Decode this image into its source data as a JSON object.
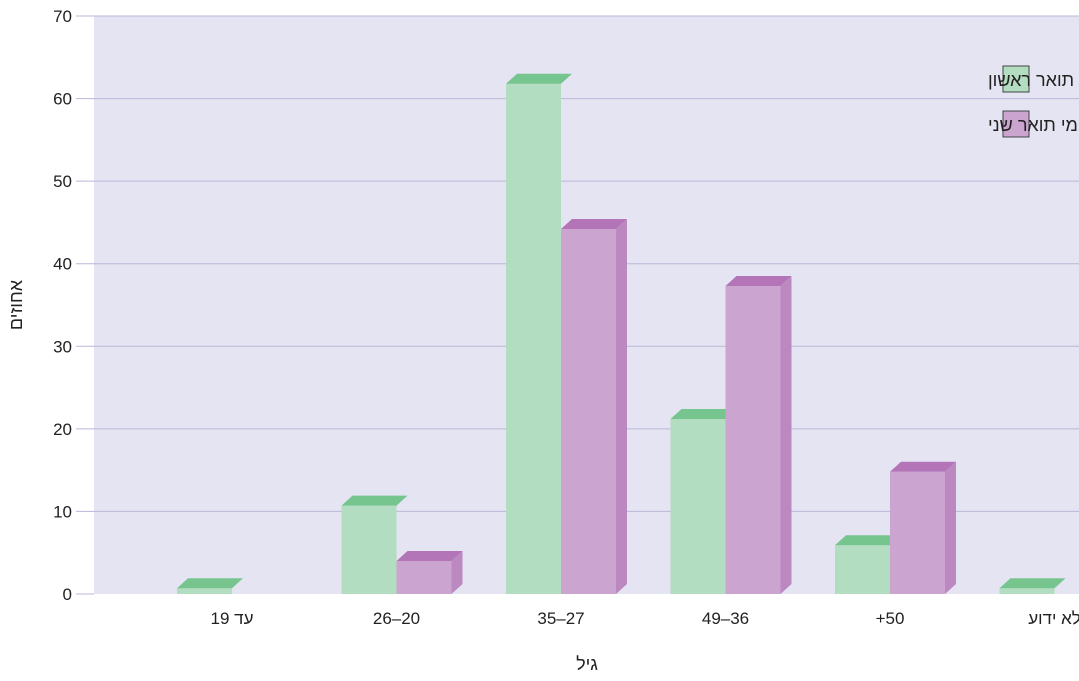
{
  "chart_data": {
    "type": "bar",
    "categories": [
      "עד 19",
      "26–20",
      "35–27",
      "49–36",
      "+50",
      "לא ידוע"
    ],
    "series": [
      {
        "name": "בוגרי תואר ראשון",
        "values": [
          0.7,
          10.7,
          61.8,
          21.2,
          5.9,
          0.7
        ]
      },
      {
        "name": "מסיימי תואר שני",
        "values": [
          0,
          4.0,
          44.2,
          37.3,
          14.8,
          0
        ]
      }
    ],
    "xlabel": "גיל",
    "ylabel": "אחוזים",
    "ylim": [
      0,
      70
    ],
    "yticks": [
      0,
      10,
      20,
      30,
      40,
      50,
      60,
      70
    ],
    "grid": true,
    "legend_position": "top-right",
    "colors": {
      "plot_background": "#e4e4f2",
      "grid": "#b8b8d8",
      "series": [
        {
          "front": "#b3ddc0",
          "top": "#76c58e",
          "side": "#8fd0a4"
        },
        {
          "front": "#cba4d0",
          "top": "#b374b8",
          "side": "#bb88c0"
        }
      ]
    }
  }
}
